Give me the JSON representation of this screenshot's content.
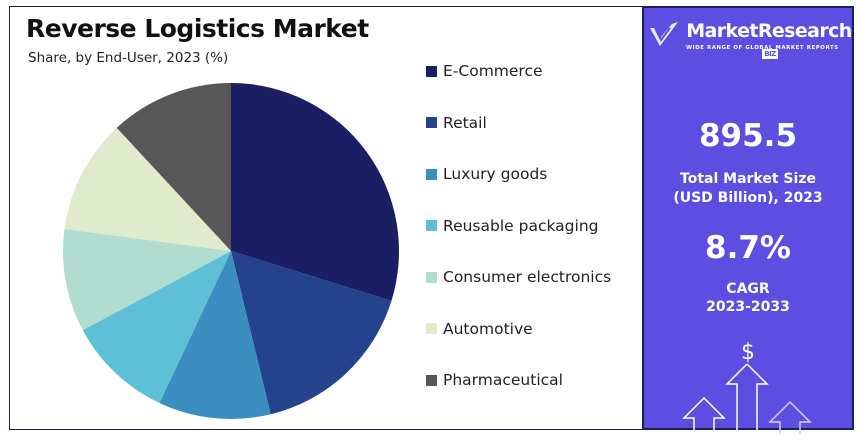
{
  "chart_data": {
    "type": "pie",
    "title": "Reverse Logistics Market",
    "subtitle": "Share, by End-User, 2023 (%)",
    "categories": [
      "E-Commerce",
      "Retail",
      "Luxury goods",
      "Reusable packaging",
      "Consumer electronics",
      "Automotive",
      "Pharmaceutical"
    ],
    "values": [
      29.8,
      16.4,
      10.8,
      10.2,
      9.9,
      11.0,
      11.9
    ],
    "colors": [
      "#1a1f63",
      "#24438c",
      "#3a8fc0",
      "#5ec0d6",
      "#b1ddd0",
      "#dfebcc",
      "#575757"
    ],
    "legend_position": "right"
  },
  "panel": {
    "brand": "MarketResearch",
    "brand_badge": "BIZ",
    "tagline": "WIDE RANGE OF GLOBAL MARKET REPORTS",
    "market_size": "895.5",
    "market_size_label_1": "Total Market Size",
    "market_size_label_2": "(USD Billion), 2023",
    "cagr": "8.7%",
    "cagr_label_1": "CAGR",
    "cagr_label_2": "2023-2033",
    "dollar": "$",
    "background": "#5b4ee0"
  }
}
